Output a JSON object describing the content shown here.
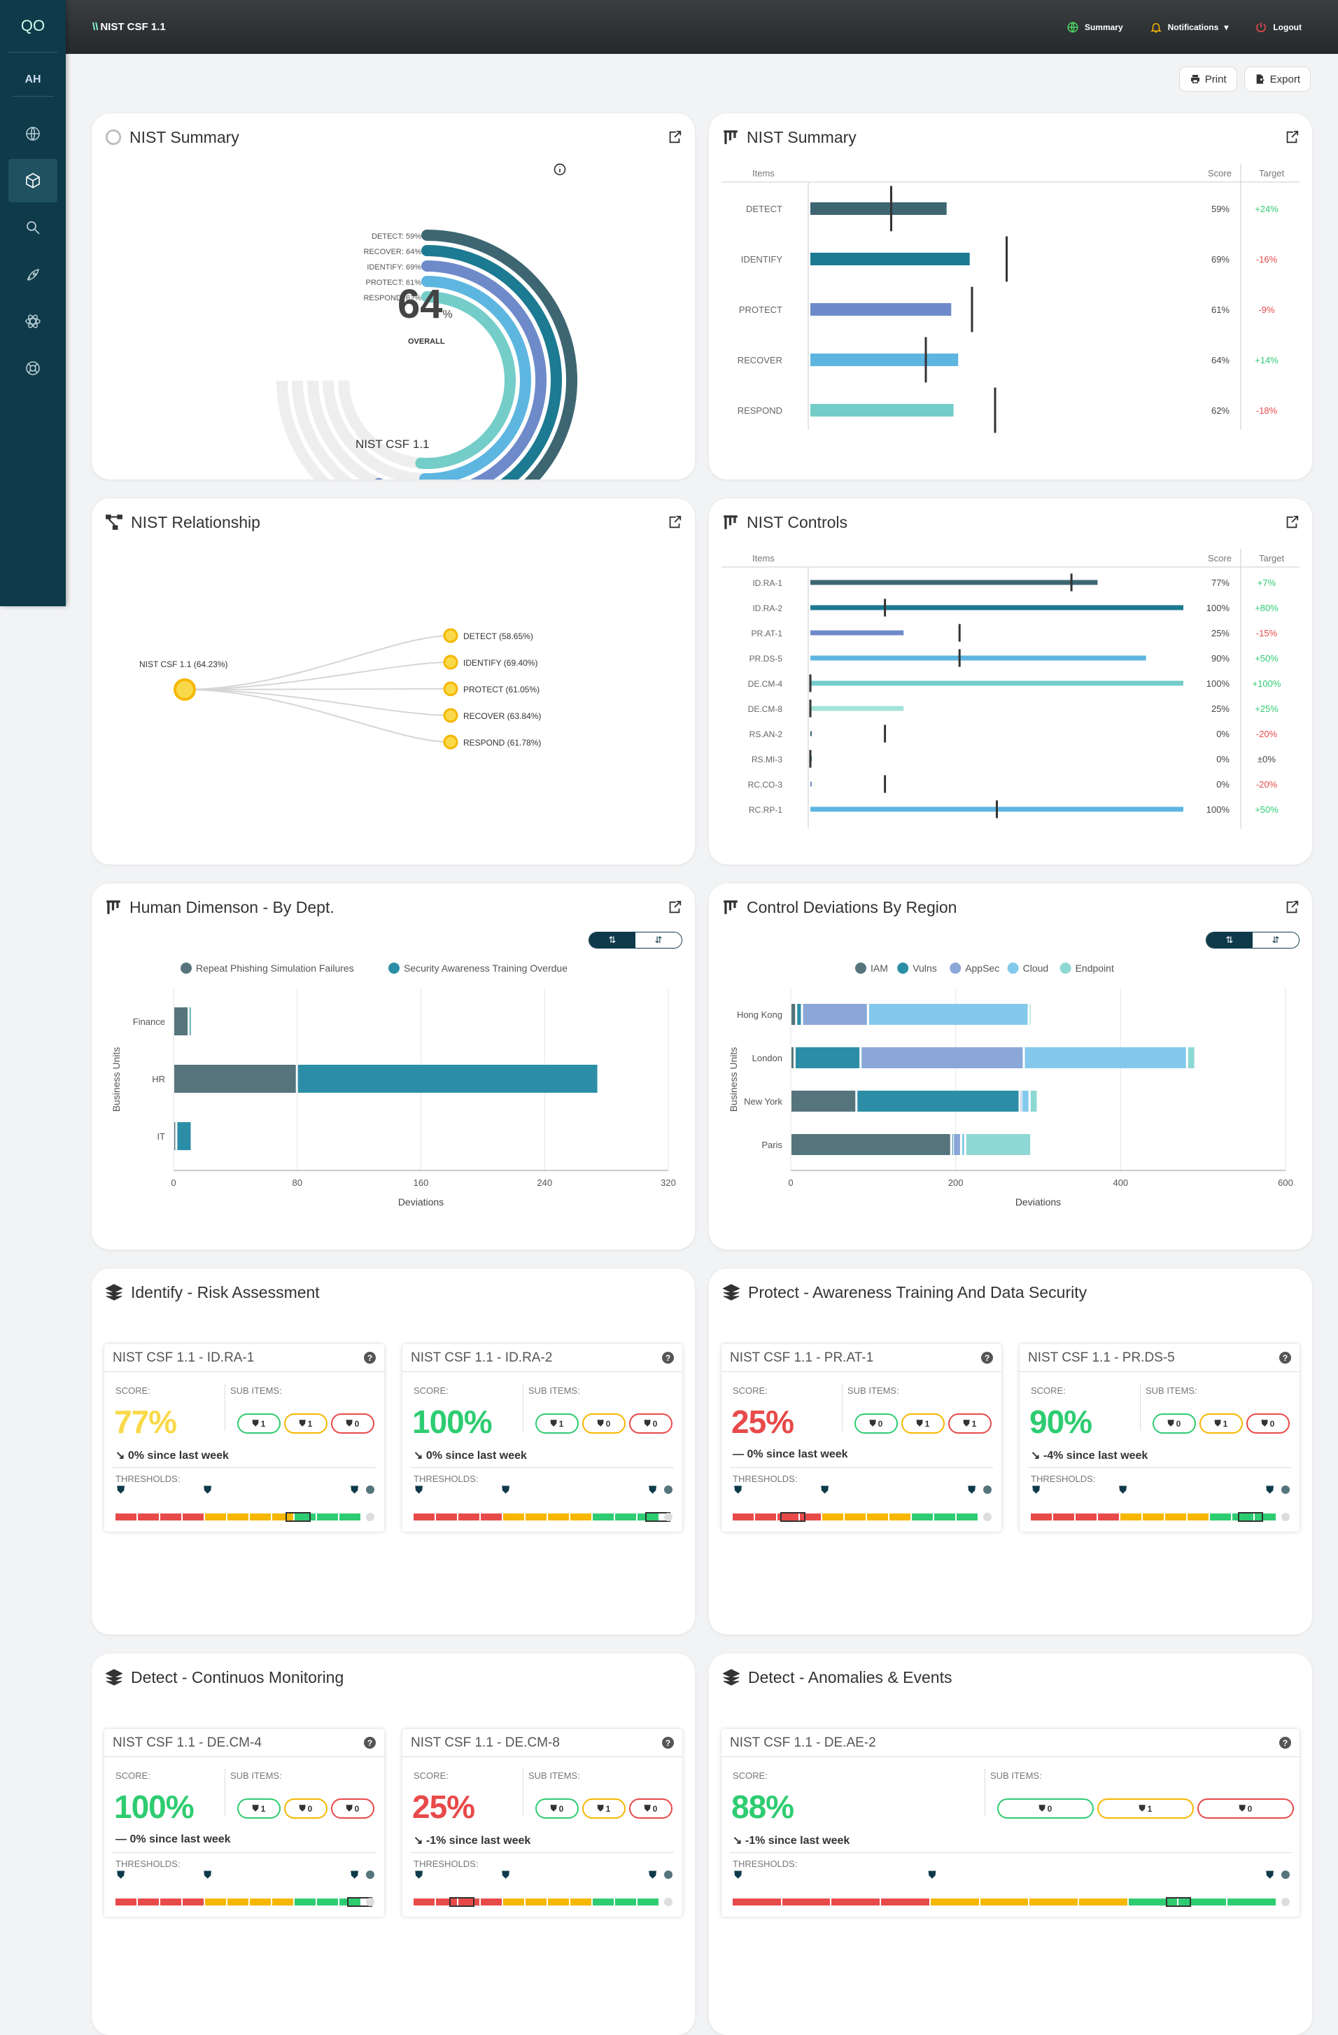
{
  "app": {
    "logo": "QO",
    "title": "NIST CSF 1.1",
    "user_initials": "AH"
  },
  "topbar": {
    "summary": "Summary",
    "notifications": "Notifications",
    "logout": "Logout"
  },
  "sidebar": {
    "items": [
      "globe-icon",
      "cube-icon",
      "search-icon",
      "rocket-icon",
      "atom-icon",
      "lifebuoy-icon"
    ]
  },
  "toolbar": {
    "print": "Print",
    "export": "Export"
  },
  "cards": {
    "nist_summary_radial": "NIST Summary",
    "nist_summary_bars": "NIST Summary",
    "relationship": "NIST Relationship",
    "controls": "NIST Controls",
    "human": "Human Dimenson - By Dept.",
    "deviations": "Control Deviations By Region",
    "identify": "Identify - Risk Assessment",
    "protect": "Protect - Awareness Training And Data Security",
    "detect_cm": "Detect - Continuos Monitoring",
    "detect_ae": "Detect - Anomalies & Events"
  },
  "radial": {
    "overall": "64",
    "overall_unit": "%",
    "overall_label": "OVERALL",
    "caption": "NIST CSF 1.1",
    "labels": [
      "DETECT: 59%",
      "RECOVER: 64%",
      "IDENTIFY: 69%",
      "PROTECT: 61%",
      "RESPOND: 62%"
    ]
  },
  "table_headers": {
    "items": "Items",
    "score": "Score",
    "target": "Target"
  },
  "relationship": {
    "root": "NIST CSF 1.1 (64.23%)",
    "nodes": [
      "DETECT (58.65%)",
      "IDENTIFY (69.40%)",
      "PROTECT (61.05%)",
      "RECOVER (63.84%)",
      "RESPOND (61.78%)"
    ]
  },
  "toggle": {
    "left": "⇅",
    "right": "⇵"
  },
  "chart_data": [
    {
      "type": "bar",
      "title": "NIST Summary",
      "categories": [
        "DETECT",
        "IDENTIFY",
        "PROTECT",
        "RECOVER",
        "RESPOND"
      ],
      "series": [
        {
          "name": "Score",
          "values": [
            59,
            69,
            61,
            64,
            62
          ]
        }
      ],
      "score_labels": [
        "59%",
        "69%",
        "61%",
        "64%",
        "62%"
      ],
      "targets": [
        35,
        85,
        70,
        50,
        80
      ],
      "target_labels": [
        "+24%",
        "-16%",
        "-9%",
        "+14%",
        "-18%"
      ],
      "colors": [
        "#3d6672",
        "#1c7a92",
        "#6e8ac9",
        "#5db6e0",
        "#74cdc9"
      ]
    },
    {
      "type": "bar",
      "title": "NIST Controls",
      "categories": [
        "ID.RA-1",
        "ID.RA-2",
        "PR.AT-1",
        "PR.DS-5",
        "DE.CM-4",
        "DE.CM-8",
        "RS.AN-2",
        "RS.MI-3",
        "RC.CO-3",
        "RC.RP-1"
      ],
      "series": [
        {
          "name": "Score",
          "values": [
            77,
            100,
            25,
            90,
            100,
            25,
            0,
            0,
            0,
            100
          ]
        }
      ],
      "score_labels": [
        "77%",
        "100%",
        "25%",
        "90%",
        "100%",
        "25%",
        "0%",
        "0%",
        "0%",
        "100%"
      ],
      "targets": [
        70,
        20,
        40,
        40,
        0,
        0,
        20,
        0,
        20,
        50
      ],
      "target_labels": [
        "+7%",
        "+80%",
        "-15%",
        "+50%",
        "+100%",
        "+25%",
        "-20%",
        "±0%",
        "-20%",
        "+50%"
      ],
      "colors": [
        "#3d6672",
        "#1c7a92",
        "#6e8ac9",
        "#5db6e0",
        "#74cdc9",
        "#a3e3d7",
        "#3d6672",
        "#1c7a92",
        "#6e8ac9",
        "#5db6e0"
      ]
    },
    {
      "type": "bar",
      "title": "Human Dimenson - By Dept.",
      "orientation": "horizontal-stacked",
      "categories": [
        "Finance",
        "HR",
        "IT"
      ],
      "series": [
        {
          "name": "Repeat Phishing Simulation Failures",
          "values": [
            10,
            80,
            2
          ],
          "color": "#56747c"
        },
        {
          "name": "Security Awareness Training Overdue",
          "values": [
            2,
            195,
            10
          ],
          "color": "#2c8ea6"
        }
      ],
      "xlabel": "Deviations",
      "ylabel": "Business Units",
      "xlim": [
        0,
        320
      ],
      "xticks": [
        0,
        80,
        160,
        240,
        320
      ]
    },
    {
      "type": "bar",
      "title": "Control Deviations By Region",
      "orientation": "horizontal-stacked",
      "categories": [
        "Hong Kong",
        "London",
        "New York",
        "Paris"
      ],
      "series": [
        {
          "name": "IAM",
          "values": [
            7,
            5,
            80,
            195
          ],
          "color": "#56747c"
        },
        {
          "name": "Vulns",
          "values": [
            7,
            80,
            198,
            2
          ],
          "color": "#2c8ea6"
        },
        {
          "name": "AppSec",
          "values": [
            80,
            198,
            2,
            10
          ],
          "color": "#8aa7d8"
        },
        {
          "name": "Cloud",
          "values": [
            195,
            198,
            10,
            5
          ],
          "color": "#84c9ec"
        },
        {
          "name": "Endpoint",
          "values": [
            2,
            10,
            10,
            80
          ],
          "color": "#8ed8d4"
        }
      ],
      "xlabel": "Deviations",
      "ylabel": "Business Units",
      "xlim": [
        0,
        600
      ],
      "xticks": [
        0,
        200,
        400,
        600
      ]
    }
  ],
  "mini_labels": {
    "score": "SCORE:",
    "sub_items": "SUB ITEMS:",
    "thresholds": "THRESHOLDS:",
    "help": "?"
  },
  "minis": [
    {
      "title": "NIST CSF 1.1 - ID.RA-1",
      "score": "77%",
      "color": "#f9d94a",
      "since": "0% since last week",
      "trend": "down",
      "subs": [
        "1",
        "1",
        "0"
      ],
      "marker": 0.7
    },
    {
      "title": "NIST CSF 1.1 - ID.RA-2",
      "score": "100%",
      "color": "#2ecc71",
      "since": "0% since last week",
      "trend": "down",
      "subs": [
        "1",
        "0",
        "0"
      ],
      "marker": 0.95
    },
    {
      "title": "NIST CSF 1.1 - PR.AT-1",
      "score": "25%",
      "color": "#e84a4a",
      "since": "0% since last week",
      "trend": "flat",
      "subs": [
        "0",
        "1",
        "1"
      ],
      "marker": 0.2
    },
    {
      "title": "NIST CSF 1.1 - PR.DS-5",
      "score": "90%",
      "color": "#2ecc71",
      "since": "-4% since last week",
      "trend": "down",
      "subs": [
        "0",
        "1",
        "0"
      ],
      "marker": 0.85
    },
    {
      "title": "NIST CSF 1.1 - DE.CM-4",
      "score": "100%",
      "color": "#2ecc71",
      "since": "0% since last week",
      "trend": "flat",
      "subs": [
        "1",
        "0",
        "0"
      ],
      "marker": 0.95
    },
    {
      "title": "NIST CSF 1.1 - DE.CM-8",
      "score": "25%",
      "color": "#e84a4a",
      "since": "-1% since last week",
      "trend": "down",
      "subs": [
        "0",
        "1",
        "0"
      ],
      "marker": 0.15
    },
    {
      "title": "NIST CSF 1.1 - DE.AE-2",
      "score": "88%",
      "color": "#2ecc71",
      "since": "-1% since last week",
      "trend": "down",
      "subs": [
        "0",
        "1",
        "0"
      ],
      "marker": 0.8
    }
  ],
  "colors": {
    "sidebar": "#0e3a4a",
    "accent_green": "#2ecc71",
    "accent_red": "#e84a4a",
    "accent_yellow": "#f5b700"
  }
}
